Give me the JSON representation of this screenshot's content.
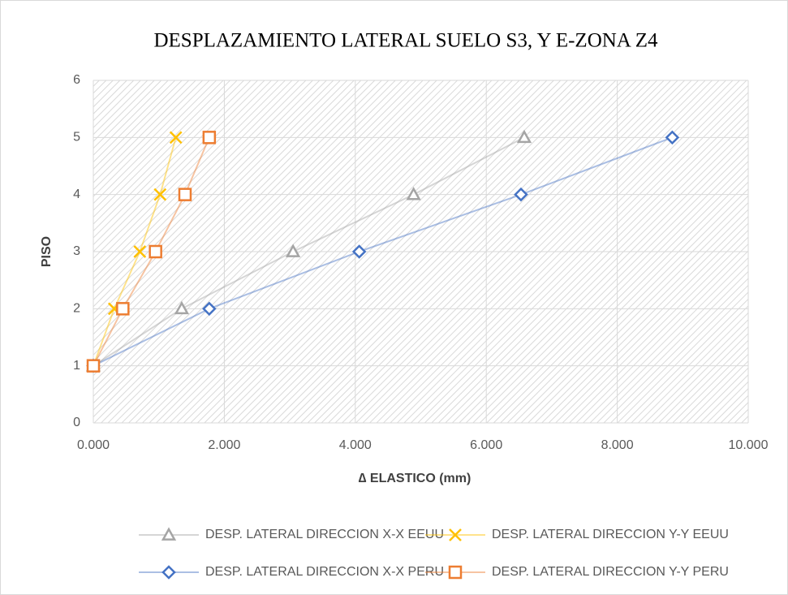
{
  "chart_data": {
    "type": "scatter",
    "title": "DESPLAZAMIENTO LATERAL SUELO S3, Y E-ZONA Z4",
    "x_label": "∆ ELASTICO (mm)",
    "y_label": "PISO",
    "xlim": [
      0,
      10
    ],
    "xticks": [
      {
        "value": 0,
        "label": "0.000"
      },
      {
        "value": 2,
        "label": "2.000"
      },
      {
        "value": 4,
        "label": "4.000"
      },
      {
        "value": 6,
        "label": "6.000"
      },
      {
        "value": 8,
        "label": "8.000"
      },
      {
        "value": 10,
        "label": "10.000"
      }
    ],
    "ylim": [
      0,
      6
    ],
    "yticks": [
      0,
      1,
      2,
      3,
      4,
      5,
      6
    ],
    "grid": true,
    "legend": "bottom",
    "series": [
      {
        "name": "DESP. LATERAL DIRECCION X-X EEUU",
        "color": "#a5a5a5",
        "marker": "triangle",
        "x": [
          0,
          1.35,
          3.05,
          4.89,
          6.58
        ],
        "values": [
          1,
          2,
          3,
          4,
          5
        ]
      },
      {
        "name": "DESP. LATERAL DIRECCION Y-Y EEUU",
        "color": "#ffc000",
        "marker": "x",
        "x": [
          0,
          0.32,
          0.71,
          1.02,
          1.26
        ],
        "values": [
          1,
          2,
          3,
          4,
          5
        ]
      },
      {
        "name": "DESP. LATERAL DIRECCION X-X PERU",
        "color": "#4472c4",
        "marker": "diamond",
        "x": [
          0,
          1.77,
          4.06,
          6.53,
          8.84
        ],
        "values": [
          1,
          2,
          3,
          4,
          5
        ]
      },
      {
        "name": "DESP. LATERAL DIRECCION Y-Y PERU",
        "color": "#ed7d31",
        "marker": "square",
        "x": [
          0,
          0.45,
          0.95,
          1.4,
          1.77
        ],
        "values": [
          1,
          2,
          3,
          4,
          5
        ]
      }
    ]
  }
}
